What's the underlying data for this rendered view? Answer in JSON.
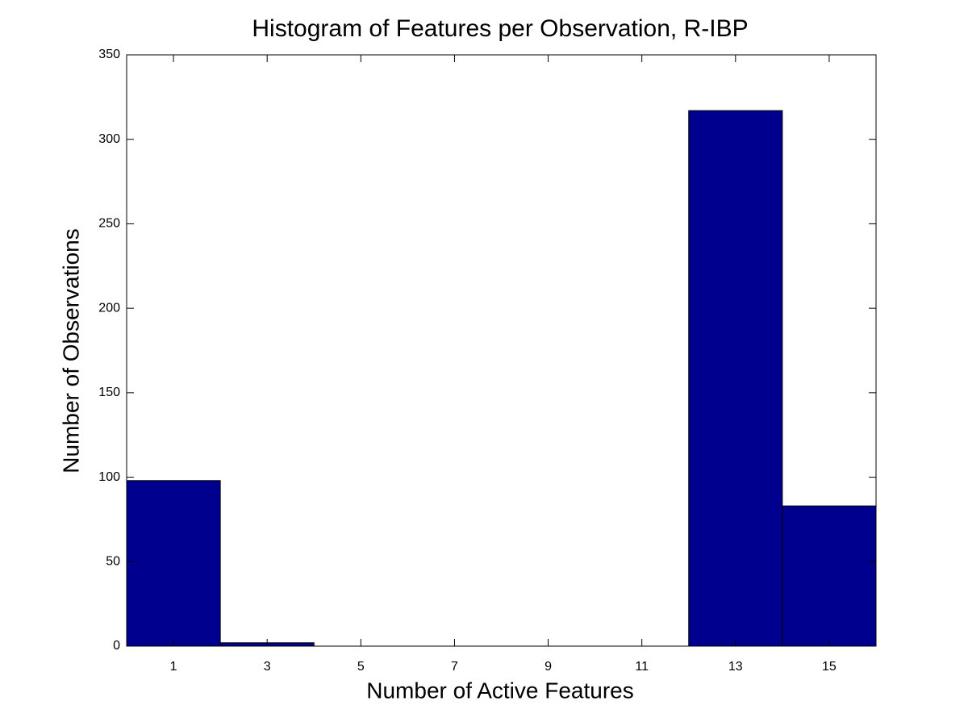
{
  "chart_data": {
    "type": "histogram",
    "title": "Histogram of Features per Observation, R-IBP",
    "x_label": "Number of Active Features",
    "y_label": "Number of Observations",
    "bins": [
      0,
      2,
      4,
      6,
      8,
      10,
      12,
      14,
      16
    ],
    "values": [
      98,
      2,
      0,
      0,
      0,
      0,
      317,
      83
    ],
    "color": "#00008f",
    "xlim": [
      0,
      16
    ],
    "xticks": [
      1,
      3,
      5,
      7,
      9,
      11,
      13,
      15
    ],
    "ylim": [
      0,
      350
    ],
    "yticks": [
      0,
      50,
      100,
      150,
      200,
      250,
      300,
      350
    ],
    "grid": false
  }
}
